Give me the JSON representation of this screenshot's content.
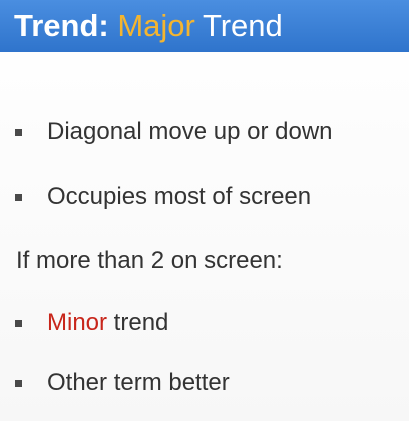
{
  "slide": {
    "title": {
      "prefix": "Trend:",
      "accent": "Major",
      "suffix": "Trend",
      "accent_color": "#f4b530",
      "bar_color": "#3a7fd6"
    },
    "bullets": [
      {
        "text": "Diagonal move up or down"
      },
      {
        "text": "Occupies most of screen"
      }
    ],
    "subheading": "If more than 2 on screen:",
    "sub_bullets": [
      {
        "highlight": "Minor",
        "rest": " trend",
        "highlight_color": "#c8261b"
      },
      {
        "text": "Other term better"
      }
    ]
  }
}
